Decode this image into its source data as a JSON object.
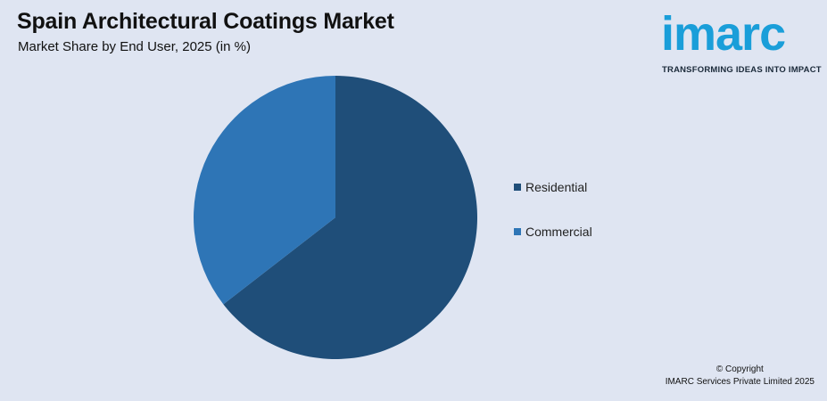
{
  "header": {
    "title": "Spain Architectural Coatings Market",
    "subtitle": "Market Share by End User, 2025 (in %)"
  },
  "logo": {
    "word": "imarc",
    "tagline": "TRANSFORMING IDEAS INTO IMPACT",
    "color": "#1a9ed9"
  },
  "footer": {
    "line1": "© Copyright",
    "line2": "IMARC Services Private Limited 2025"
  },
  "chart_data": {
    "type": "pie",
    "title": "Spain Architectural Coatings Market",
    "subtitle": "Market Share by End User, 2025 (in %)",
    "categories": [
      "Residential",
      "Commercial"
    ],
    "values": [
      64.5,
      35.5
    ],
    "colors": [
      "#1f4e79",
      "#2e75b6"
    ],
    "legend_position": "right"
  }
}
